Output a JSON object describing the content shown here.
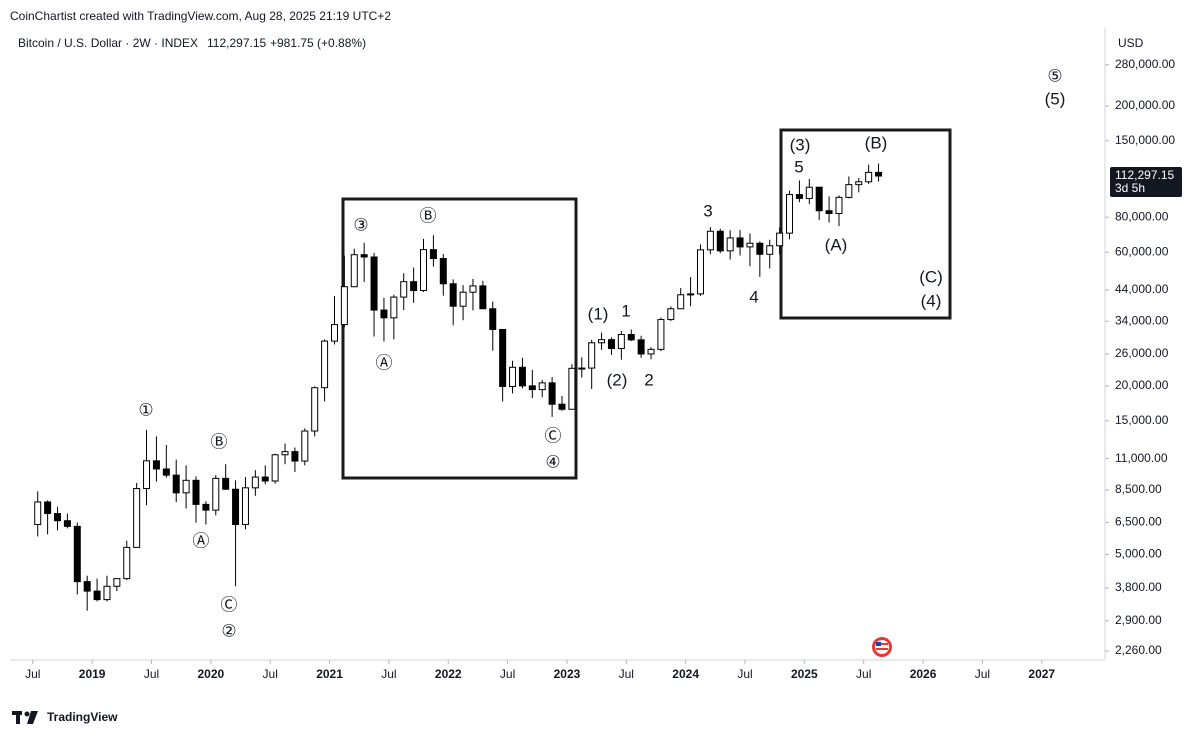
{
  "header": {
    "credit": "CoinChartist created with TradingView.com, Aug 28, 2025 21:19 UTC+2",
    "symbol": "Bitcoin / U.S. Dollar · 2W · INDEX",
    "price": "112,297.15",
    "change": "+981.75 (+0.88%)"
  },
  "chart_data": {
    "type": "candlestick",
    "y_unit": "USD",
    "log_scale": true,
    "x": [
      "2018-07",
      "2018-08",
      "2018-09",
      "2018-10",
      "2018-11",
      "2018-12",
      "2019-01",
      "2019-02",
      "2019-03",
      "2019-04",
      "2019-05",
      "2019-06",
      "2019-07",
      "2019-08",
      "2019-09",
      "2019-10",
      "2019-11",
      "2019-12",
      "2020-01",
      "2020-02",
      "2020-03",
      "2020-04",
      "2020-05",
      "2020-06",
      "2020-07",
      "2020-08",
      "2020-09",
      "2020-10",
      "2020-11",
      "2020-12",
      "2021-01",
      "2021-02",
      "2021-03",
      "2021-04",
      "2021-05",
      "2021-06",
      "2021-07",
      "2021-08",
      "2021-09",
      "2021-10",
      "2021-11",
      "2021-12",
      "2022-01",
      "2022-02",
      "2022-03",
      "2022-04",
      "2022-05",
      "2022-06",
      "2022-07",
      "2022-08",
      "2022-09",
      "2022-10",
      "2022-11",
      "2022-12",
      "2023-01",
      "2023-02",
      "2023-03",
      "2023-04",
      "2023-05",
      "2023-06",
      "2023-07",
      "2023-08",
      "2023-09",
      "2023-10",
      "2023-11",
      "2023-12",
      "2024-01",
      "2024-02",
      "2024-03",
      "2024-04",
      "2024-05",
      "2024-06",
      "2024-07",
      "2024-08",
      "2024-09",
      "2024-10",
      "2024-11",
      "2024-12",
      "2025-01",
      "2025-02",
      "2025-03",
      "2025-04",
      "2025-05",
      "2025-06",
      "2025-07",
      "2025-08"
    ],
    "open": [
      6400,
      7700,
      7000,
      6600,
      6300,
      4000,
      3700,
      3450,
      3850,
      4100,
      5300,
      8600,
      10800,
      10100,
      9600,
      8300,
      9200,
      7550,
      7200,
      9350,
      8550,
      6400,
      8650,
      9450,
      9150,
      11350,
      11650,
      10780,
      13800,
      19700,
      28900,
      33100,
      45200,
      58800,
      57700,
      37300,
      35000,
      41500,
      47100,
      43800,
      61300,
      57000,
      46300,
      38500,
      43200,
      45500,
      37700,
      31800,
      19900,
      23300,
      20000,
      19400,
      20500,
      17200,
      16500,
      23100,
      23150,
      28500,
      29250,
      27200,
      30500,
      29200,
      26000,
      27000,
      34500,
      37700,
      42300,
      42600,
      61200,
      71300,
      60700,
      67500,
      62700,
      64600,
      59000,
      63300,
      70200,
      96400,
      93400,
      102400,
      84400,
      82500,
      94200,
      104600,
      107100,
      115700
    ],
    "high": [
      8400,
      7800,
      7400,
      7000,
      6500,
      4200,
      4100,
      4200,
      4100,
      5600,
      9000,
      13900,
      13200,
      12300,
      10900,
      10400,
      9500,
      7750,
      9600,
      10500,
      9200,
      9450,
      10000,
      10400,
      11450,
      12450,
      12050,
      14100,
      19900,
      29300,
      41900,
      58300,
      61800,
      64900,
      59600,
      41300,
      42300,
      50500,
      52900,
      67000,
      69000,
      59100,
      48000,
      45800,
      48200,
      47400,
      40000,
      31900,
      24600,
      25200,
      22800,
      21000,
      21500,
      18400,
      23900,
      25300,
      29200,
      31000,
      29800,
      31400,
      31800,
      30200,
      27500,
      35100,
      38400,
      44700,
      48900,
      64000,
      73800,
      72800,
      71900,
      72000,
      70000,
      65600,
      66500,
      73600,
      99600,
      108300,
      109600,
      102800,
      95000,
      95800,
      111900,
      110500,
      123200,
      124400
    ],
    "low": [
      5800,
      5900,
      6100,
      6200,
      3600,
      3150,
      3400,
      3400,
      3700,
      4050,
      5300,
      7500,
      9100,
      9400,
      7700,
      7300,
      6500,
      6400,
      6900,
      8500,
      3850,
      6150,
      8100,
      8900,
      8950,
      10500,
      9850,
      10400,
      13200,
      17600,
      28100,
      32400,
      45000,
      47000,
      30000,
      28800,
      29300,
      37300,
      39600,
      43300,
      53300,
      42000,
      32900,
      34300,
      37200,
      37700,
      26700,
      17600,
      18800,
      19600,
      18100,
      18200,
      15500,
      16300,
      16500,
      21400,
      19500,
      26900,
      25800,
      24800,
      28900,
      25200,
      24900,
      26600,
      34100,
      37600,
      38500,
      41900,
      59000,
      59600,
      56500,
      58400,
      53500,
      49000,
      52500,
      58900,
      66800,
      90500,
      89200,
      78200,
      76600,
      74400,
      93400,
      98200,
      105100,
      107300
    ],
    "close": [
      7700,
      7000,
      6600,
      6300,
      4000,
      3700,
      3450,
      3850,
      4100,
      5300,
      8600,
      10800,
      10100,
      9600,
      8300,
      9200,
      7550,
      7200,
      9350,
      8550,
      6400,
      8650,
      9450,
      9150,
      11350,
      11650,
      10780,
      13800,
      19700,
      28900,
      33100,
      45200,
      58800,
      57700,
      37300,
      35000,
      41500,
      47100,
      43800,
      61300,
      57000,
      46300,
      38500,
      43200,
      45500,
      37700,
      31800,
      19900,
      23300,
      20000,
      19400,
      20500,
      17200,
      16500,
      23100,
      23150,
      28500,
      29250,
      27200,
      30500,
      29200,
      26000,
      27000,
      34500,
      37700,
      42300,
      42600,
      61200,
      71300,
      60700,
      67500,
      62700,
      64600,
      59000,
      63300,
      70200,
      96400,
      93400,
      102400,
      84400,
      82500,
      94200,
      104600,
      107100,
      115700,
      112297.15
    ],
    "last_price": {
      "value": 112297.15,
      "label": "112,297.15"
    },
    "countdown": "3d 5h",
    "up_color": "#ffffff",
    "down_color": "#000000",
    "xlim": [
      "2018-05",
      "2027-08"
    ],
    "xticks": [
      {
        "value": "2018-07",
        "label": "Jul"
      },
      {
        "value": "2019-01",
        "label": "2019"
      },
      {
        "value": "2019-07",
        "label": "Jul"
      },
      {
        "value": "2020-01",
        "label": "2020"
      },
      {
        "value": "2020-07",
        "label": "Jul"
      },
      {
        "value": "2021-01",
        "label": "2021"
      },
      {
        "value": "2021-07",
        "label": "Jul"
      },
      {
        "value": "2022-01",
        "label": "2022"
      },
      {
        "value": "2022-07",
        "label": "Jul"
      },
      {
        "value": "2023-01",
        "label": "2023"
      },
      {
        "value": "2023-07",
        "label": "Jul"
      },
      {
        "value": "2024-01",
        "label": "2024"
      },
      {
        "value": "2024-07",
        "label": "Jul"
      },
      {
        "value": "2025-01",
        "label": "2025"
      },
      {
        "value": "2025-07",
        "label": "Jul"
      },
      {
        "value": "2026-01",
        "label": "2026"
      },
      {
        "value": "2026-07",
        "label": "Jul"
      },
      {
        "value": "2027-01",
        "label": "2027"
      }
    ],
    "ylim": [
      2100,
      373000
    ],
    "yticks": [
      {
        "value": 280000,
        "label": "280,000.00"
      },
      {
        "value": 200000,
        "label": "200,000.00"
      },
      {
        "value": 150000,
        "label": "150,000.00"
      },
      {
        "value": 80000,
        "label": "80,000.00"
      },
      {
        "value": 60000,
        "label": "60,000.00"
      },
      {
        "value": 44000,
        "label": "44,000.00"
      },
      {
        "value": 34000,
        "label": "34,000.00"
      },
      {
        "value": 26000,
        "label": "26,000.00"
      },
      {
        "value": 20000,
        "label": "20,000.00"
      },
      {
        "value": 15000,
        "label": "15,000.00"
      },
      {
        "value": 11000,
        "label": "11,000.00"
      },
      {
        "value": 8500,
        "label": "8,500.00"
      },
      {
        "value": 6500,
        "label": "6,500.00"
      },
      {
        "value": 5000,
        "label": "5,000.00"
      },
      {
        "value": 3800,
        "label": "3,800.00"
      },
      {
        "value": 2900,
        "label": "2,900.00"
      },
      {
        "value": 2260,
        "label": "2,260.00"
      }
    ],
    "annotations": [
      "①",
      "Ⓑ",
      "Ⓐ",
      "Ⓒ",
      "②",
      "③",
      "Ⓑ",
      "Ⓐ",
      "Ⓒ",
      "④",
      "(1)",
      "1",
      "(2)",
      "2",
      "3",
      "4",
      "(3)",
      "5",
      "(B)",
      "(A)",
      "(C)",
      "(4)",
      "⑤",
      "(5)"
    ]
  },
  "footer": {
    "brand": "TradingView"
  }
}
